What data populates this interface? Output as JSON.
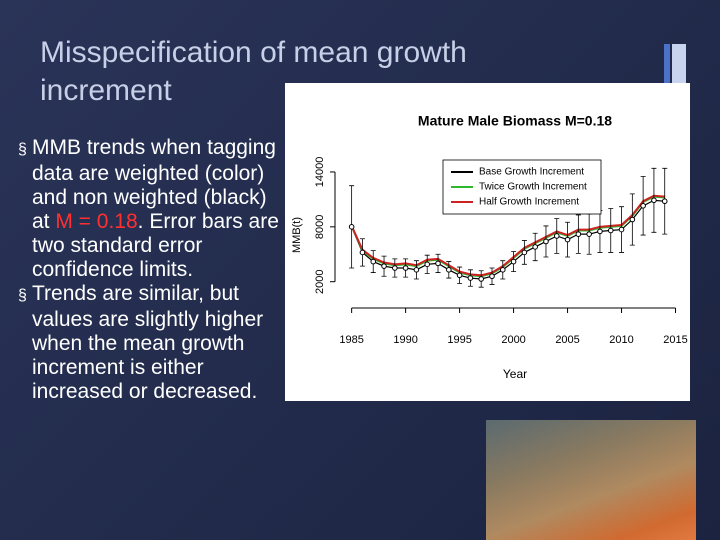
{
  "slide": {
    "title": "Misspecification of mean growth increment",
    "bullets": [
      [
        "MMB trends when tagging data are weighted (color) and non weighted (black) at ",
        "M = 0.18",
        ". Error bars are two standard error confidence limits."
      ],
      [
        "Trends are similar, but values are slightly higher when the mean growth increment is either increased or decreased."
      ]
    ]
  },
  "chart_data": {
    "type": "line",
    "title": "Mature Male Biomass M=0.18",
    "x_label": "Year",
    "y_label": "MMB(t)",
    "x": [
      1985,
      1986,
      1987,
      1988,
      1989,
      1990,
      1991,
      1992,
      1993,
      1994,
      1995,
      1996,
      1997,
      1998,
      1999,
      2000,
      2001,
      2002,
      2003,
      2004,
      2005,
      2006,
      2007,
      2008,
      2009,
      2010,
      2011,
      2012,
      2013,
      2014
    ],
    "series": [
      {
        "name": "Base Growth Increment",
        "color": "#000000",
        "values": [
          8000,
          5200,
          4200,
          3700,
          3500,
          3500,
          3300,
          3900,
          4000,
          3300,
          2700,
          2400,
          2300,
          2600,
          3300,
          4200,
          5200,
          5800,
          6400,
          7000,
          6600,
          7200,
          7200,
          7500,
          7600,
          7700,
          8800,
          10300,
          10900,
          10800
        ],
        "errors": [
          4500,
          1500,
          1200,
          1100,
          1000,
          1000,
          1000,
          1000,
          1000,
          900,
          900,
          900,
          900,
          900,
          1000,
          1100,
          1300,
          1500,
          1700,
          1900,
          1900,
          2100,
          2200,
          2300,
          2400,
          2500,
          2800,
          3200,
          3500,
          3600
        ]
      },
      {
        "name": "Twice Growth Increment",
        "color": "#2eb82e",
        "values": [
          8100,
          5400,
          4500,
          4000,
          3800,
          3900,
          3700,
          4300,
          4400,
          3700,
          3000,
          2700,
          2600,
          2900,
          3600,
          4600,
          5600,
          6200,
          6800,
          7400,
          7000,
          7600,
          7600,
          7900,
          8000,
          8100,
          9200,
          10700,
          11300,
          11200
        ]
      },
      {
        "name": "Half Growth Increment",
        "color": "#cc2222",
        "values": [
          8100,
          5500,
          4600,
          4100,
          3900,
          4000,
          3800,
          4400,
          4500,
          3800,
          3100,
          2800,
          2700,
          3000,
          3700,
          4700,
          5700,
          6300,
          6900,
          7500,
          7100,
          7700,
          7700,
          8000,
          8100,
          8200,
          9300,
          10800,
          11400,
          11300
        ]
      }
    ],
    "xlim": [
      1984.2,
      2015.6
    ],
    "ylim": [
      0,
      16400
    ],
    "xticks": [
      1985,
      1990,
      1995,
      2000,
      2005,
      2010,
      2015
    ],
    "yticks": [
      2000,
      8000,
      14000
    ],
    "legend": "top-right"
  }
}
